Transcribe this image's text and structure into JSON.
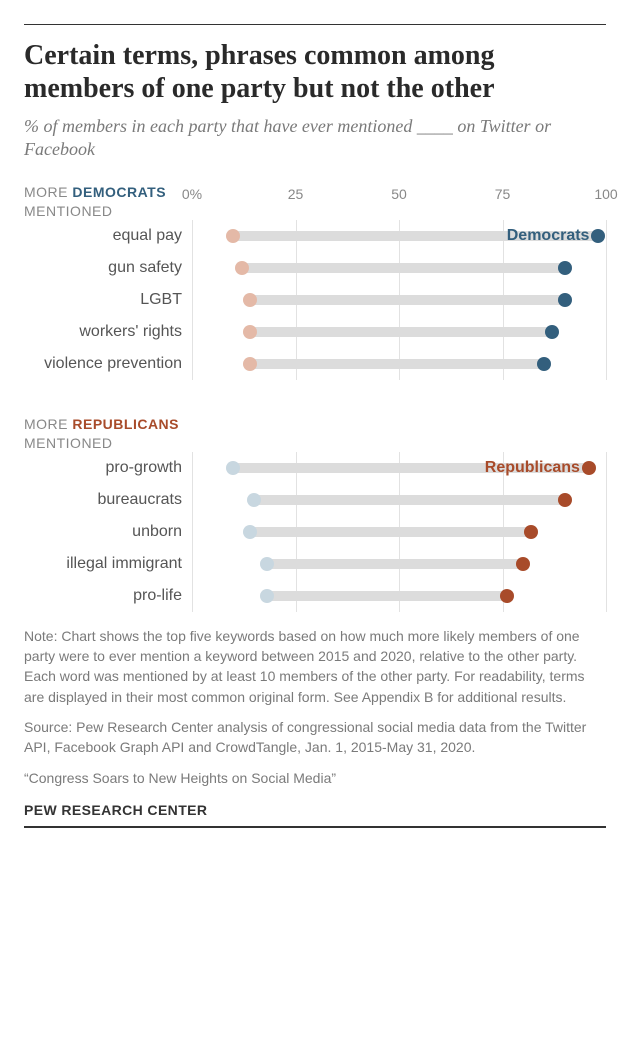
{
  "title": "Certain terms, phrases common among members of one party but not the other",
  "subtitle": "% of members in each party that have ever mentioned ____ on Twitter or Facebook",
  "axis": {
    "min": 0,
    "max": 100,
    "ticks": [
      0,
      25,
      50,
      75,
      100
    ],
    "tick_labels": [
      "0%",
      "25",
      "50",
      "75",
      "100"
    ],
    "grid_color": "#e2e2e2",
    "label_fontsize": 14,
    "label_color": "#888888"
  },
  "colors": {
    "dem_dark": "#335f7d",
    "dem_light": "#c8d7e0",
    "rep_dark": "#a84b2a",
    "rep_light": "#e4b9a7",
    "bar": "#dcdcdc",
    "text": "#555555",
    "muted": "#888888"
  },
  "groups": [
    {
      "header_prefix": "MORE ",
      "header_party": "DEMOCRATS",
      "header_suffix": " MENTIONED",
      "party_class": "dem",
      "series_label": "Democrats",
      "series_label_color": "#335f7d",
      "low_color": "#e4b9a7",
      "high_color": "#335f7d",
      "rows": [
        {
          "label": "equal pay",
          "low": 10,
          "high": 98,
          "show_series_label": true
        },
        {
          "label": "gun safety",
          "low": 12,
          "high": 90
        },
        {
          "label": "LGBT",
          "low": 14,
          "high": 90
        },
        {
          "label": "workers' rights",
          "low": 14,
          "high": 87
        },
        {
          "label": "violence prevention",
          "low": 14,
          "high": 85
        }
      ]
    },
    {
      "header_prefix": "MORE ",
      "header_party": "REPUBLICANS",
      "header_suffix": " MENTIONED",
      "party_class": "rep",
      "series_label": "Republicans",
      "series_label_color": "#a84b2a",
      "low_color": "#c8d7e0",
      "high_color": "#a84b2a",
      "rows": [
        {
          "label": "pro-growth",
          "low": 10,
          "high": 96,
          "show_series_label": true
        },
        {
          "label": "bureaucrats",
          "low": 15,
          "high": 90
        },
        {
          "label": "unborn",
          "low": 14,
          "high": 82
        },
        {
          "label": "illegal immigrant",
          "low": 18,
          "high": 80
        },
        {
          "label": "pro-life",
          "low": 18,
          "high": 76
        }
      ]
    }
  ],
  "note": "Note: Chart shows the top five keywords based on how much more likely members of one party were to ever mention a keyword between 2015 and 2020, relative to the other party. Each word was mentioned by at least 10 members of the other party. For readability, terms are displayed in their most common original form. See Appendix B for additional results.",
  "source": "Source: Pew Research Center analysis of congressional social media data from the Twitter API, Facebook Graph API and CrowdTangle, Jan. 1, 2015-May 31, 2020.",
  "credit": "“Congress Soars to New Heights on Social Media”",
  "org": "PEW RESEARCH CENTER"
}
